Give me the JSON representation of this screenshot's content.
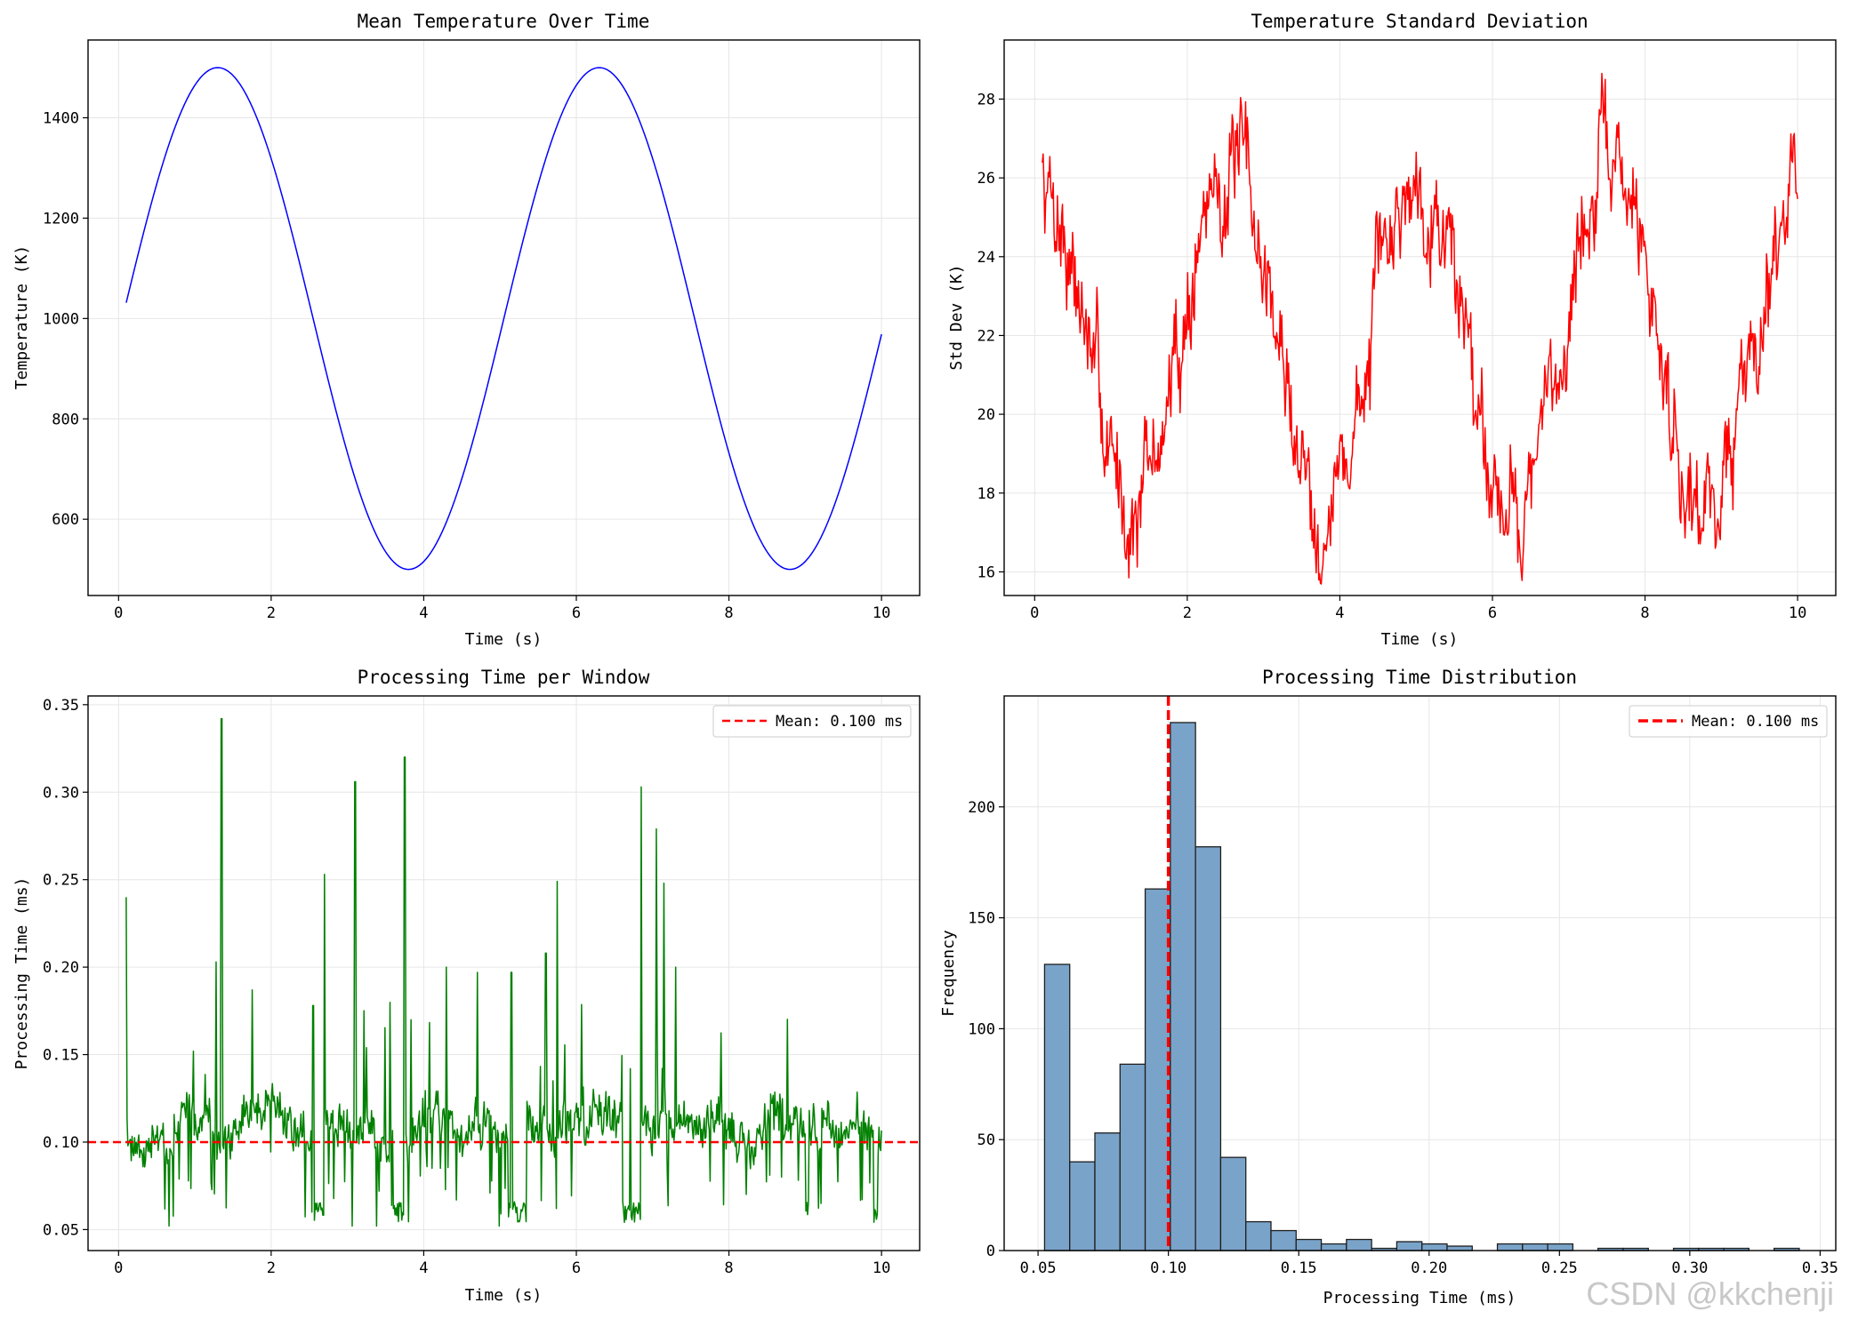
{
  "watermark": "CSDN @kkchenji",
  "colors": {
    "ax1_line": "#0000ff",
    "ax2_line": "#ff0000",
    "ax3_line": "#008000",
    "mean_line": "#ff0000",
    "hist_fill": "#7aa3c9",
    "hist_edge": "#1f1f1f",
    "grid": "#e6e6e6"
  },
  "chart_data": [
    {
      "id": "ax1",
      "type": "line",
      "title": "Mean Temperature Over Time",
      "xlabel": "Time (s)",
      "ylabel": "Temperature (K)",
      "xlim": [
        -0.4,
        10.5
      ],
      "ylim": [
        448,
        1555
      ],
      "xticks": [
        0,
        2,
        4,
        6,
        8,
        10
      ],
      "yticks": [
        600,
        800,
        1000,
        1200,
        1400
      ],
      "grid": true,
      "series": [
        {
          "model": "sine",
          "x_start": 0.1,
          "x_end": 10.0,
          "points": 300,
          "mean": 1000,
          "amplitude": 500,
          "period": 5.0,
          "peak_x": 1.3
        }
      ]
    },
    {
      "id": "ax2",
      "type": "line",
      "title": "Temperature Standard Deviation",
      "xlabel": "Time (s)",
      "ylabel": "Std Dev (K)",
      "xlim": [
        -0.4,
        10.5
      ],
      "ylim": [
        15.4,
        29.5
      ],
      "xticks": [
        0,
        2,
        4,
        6,
        8,
        10
      ],
      "yticks": [
        16,
        18,
        20,
        22,
        24,
        26,
        28
      ],
      "grid": true,
      "series": [
        {
          "model": "noisy-sine",
          "x_start": 0.1,
          "x_end": 10.0,
          "points": 900,
          "mean": 22,
          "amplitude": 4.2,
          "period": 2.5,
          "trough_x": 1.3,
          "noise": 0.9,
          "seed": 7
        }
      ]
    },
    {
      "id": "ax3",
      "type": "line",
      "title": "Processing Time per Window",
      "xlabel": "Time (s)",
      "ylabel": "Processing Time (ms)",
      "xlim": [
        -0.4,
        10.5
      ],
      "ylim": [
        0.038,
        0.355
      ],
      "xticks": [
        0,
        2,
        4,
        6,
        8,
        10
      ],
      "yticks": [
        0.05,
        0.1,
        0.15,
        0.2,
        0.25,
        0.3,
        0.35
      ],
      "grid": true,
      "series": [
        {
          "model": "noisy-baseline",
          "x_start": 0.1,
          "x_end": 10.0,
          "points": 900,
          "baseline": 0.1,
          "seed": 11,
          "spikes": [
            [
              0.1,
              0.24
            ],
            [
              1.35,
              0.342
            ],
            [
              1.28,
              0.203
            ],
            [
              1.75,
              0.187
            ],
            [
              2.7,
              0.253
            ],
            [
              2.55,
              0.178
            ],
            [
              3.1,
              0.306
            ],
            [
              3.75,
              0.32
            ],
            [
              4.3,
              0.2
            ],
            [
              4.7,
              0.197
            ],
            [
              5.15,
              0.197
            ],
            [
              5.6,
              0.208
            ],
            [
              5.75,
              0.249
            ],
            [
              6.85,
              0.303
            ],
            [
              7.05,
              0.279
            ],
            [
              7.15,
              0.248
            ],
            [
              7.3,
              0.2
            ]
          ],
          "low_segments": [
            [
              2.55,
              2.7
            ],
            [
              3.6,
              3.75
            ],
            [
              5.1,
              5.35
            ],
            [
              6.6,
              6.85
            ],
            [
              9.0,
              9.05
            ],
            [
              9.9,
              9.95
            ]
          ]
        }
      ],
      "hlines": [
        {
          "y": 0.1,
          "label": "Mean: 0.100 ms",
          "style": "dashed"
        }
      ],
      "legend": "top-right"
    },
    {
      "id": "ax4",
      "type": "bar",
      "title": "Processing Time Distribution",
      "xlabel": "Processing Time (ms)",
      "ylabel": "Frequency",
      "xlim": [
        0.037,
        0.356
      ],
      "ylim": [
        0,
        250
      ],
      "xticks": [
        0.05,
        0.1,
        0.15,
        0.2,
        0.25,
        0.3,
        0.35
      ],
      "yticks": [
        0,
        50,
        100,
        150,
        200
      ],
      "grid": true,
      "bin_start": 0.0525,
      "bin_width": 0.00965,
      "values": [
        129,
        40,
        53,
        84,
        163,
        238,
        182,
        42,
        13,
        9,
        5,
        3,
        5,
        1,
        4,
        3,
        2,
        0,
        3,
        3,
        3,
        0,
        1,
        1,
        0,
        1,
        1,
        1,
        0,
        1
      ],
      "vlines": [
        {
          "x": 0.1,
          "label": "Mean: 0.100 ms",
          "style": "dashed"
        }
      ],
      "legend": "top-right"
    }
  ]
}
